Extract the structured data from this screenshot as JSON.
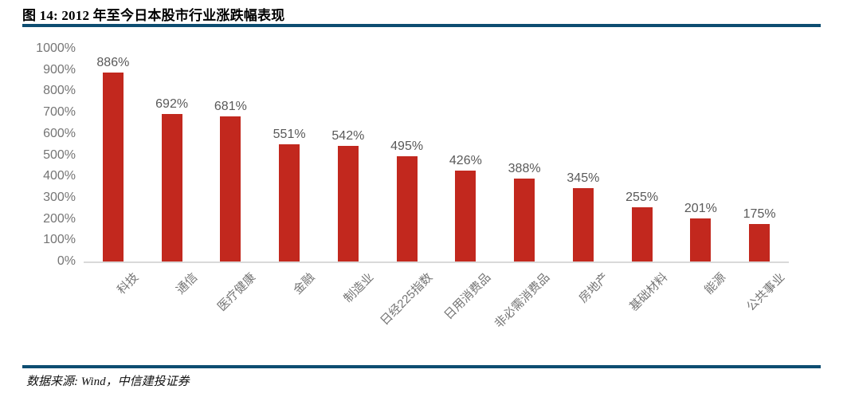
{
  "title": "图 14: 2012 年至今日本股市行业涨跌幅表现",
  "footer": {
    "source_text": "数据来源: Wind，中信建投证券"
  },
  "colors": {
    "rule": "#0d4d71",
    "bar": "#c2281e",
    "axis_line": "#d9d9d9",
    "tick_label": "#757575",
    "data_label": "#595959",
    "category_label": "#757575",
    "title_text": "#000000"
  },
  "chart_data": {
    "type": "bar",
    "title": "图 14: 2012 年至今日本股市行业涨跌幅表现",
    "categories": [
      "科技",
      "通信",
      "医疗健康",
      "金融",
      "制造业",
      "日经225指数",
      "日用消费品",
      "非必需消费品",
      "房地产",
      "基础材料",
      "能源",
      "公共事业"
    ],
    "values": [
      886,
      692,
      681,
      551,
      542,
      495,
      426,
      388,
      345,
      255,
      201,
      175
    ],
    "value_labels": [
      "886%",
      "692%",
      "681%",
      "551%",
      "542%",
      "495%",
      "426%",
      "388%",
      "345%",
      "255%",
      "201%",
      "175%"
    ],
    "xlabel": "",
    "ylabel": "",
    "ylim": [
      0,
      1000
    ],
    "ytick_step": 100,
    "ytick_labels": [
      "0%",
      "100%",
      "200%",
      "300%",
      "400%",
      "500%",
      "600%",
      "700%",
      "800%",
      "900%",
      "1000%"
    ],
    "grid": false,
    "legend": false,
    "bar_color": "#c2281e",
    "source": "数据来源: Wind，中信建投证券"
  }
}
